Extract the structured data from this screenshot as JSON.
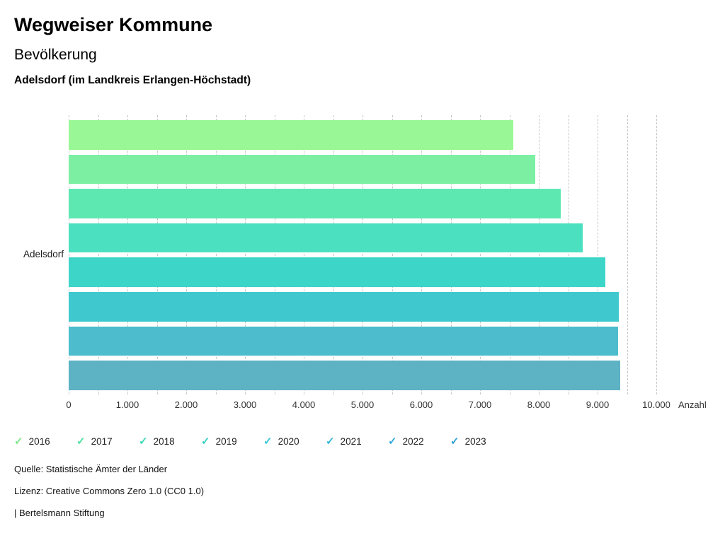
{
  "header": {
    "title": "Wegweiser Kommune",
    "subtitle": "Bevölkerung",
    "region": "Adelsdorf (im Landkreis Erlangen-Höchstadt)"
  },
  "chart_data": {
    "type": "bar",
    "orientation": "horizontal",
    "group_label": "Adelsdorf",
    "categories": [
      "2016",
      "2017",
      "2018",
      "2019",
      "2020",
      "2021",
      "2022",
      "2023"
    ],
    "values": [
      7565,
      7935,
      8370,
      8745,
      9130,
      9360,
      9345,
      9390
    ],
    "bar_colors": [
      "#9af796",
      "#7cefa3",
      "#5ee8b1",
      "#4be0bf",
      "#3ed5c9",
      "#3fc9cf",
      "#4dbccd",
      "#5db2c4"
    ],
    "xlabel": "Anzahl",
    "x_ticks": [
      "0",
      "1.000",
      "2.000",
      "3.000",
      "4.000",
      "5.000",
      "6.000",
      "7.000",
      "8.000",
      "9.000",
      "10.000"
    ],
    "xlim": [
      0,
      10000
    ],
    "gridline_step": 500,
    "grid": true,
    "legend_position": "bottom"
  },
  "legend": {
    "items": [
      {
        "label": "2016",
        "icon": "check-icon",
        "color": "#7ce98a"
      },
      {
        "label": "2017",
        "icon": "check-icon",
        "color": "#4fe0a4"
      },
      {
        "label": "2018",
        "icon": "check-icon",
        "color": "#3cd9b8"
      },
      {
        "label": "2019",
        "icon": "check-icon",
        "color": "#35d1c6"
      },
      {
        "label": "2020",
        "icon": "check-icon",
        "color": "#38c8d2"
      },
      {
        "label": "2021",
        "icon": "check-icon",
        "color": "#34b9d8"
      },
      {
        "label": "2022",
        "icon": "check-icon",
        "color": "#33abd9"
      },
      {
        "label": "2023",
        "icon": "check-icon",
        "color": "#2f9fd6"
      }
    ]
  },
  "footer": {
    "source": "Quelle: Statistische Ämter der Länder",
    "license": "Lizenz: Creative Commons Zero 1.0 (CC0 1.0)",
    "brand": "| Bertelsmann Stiftung"
  }
}
